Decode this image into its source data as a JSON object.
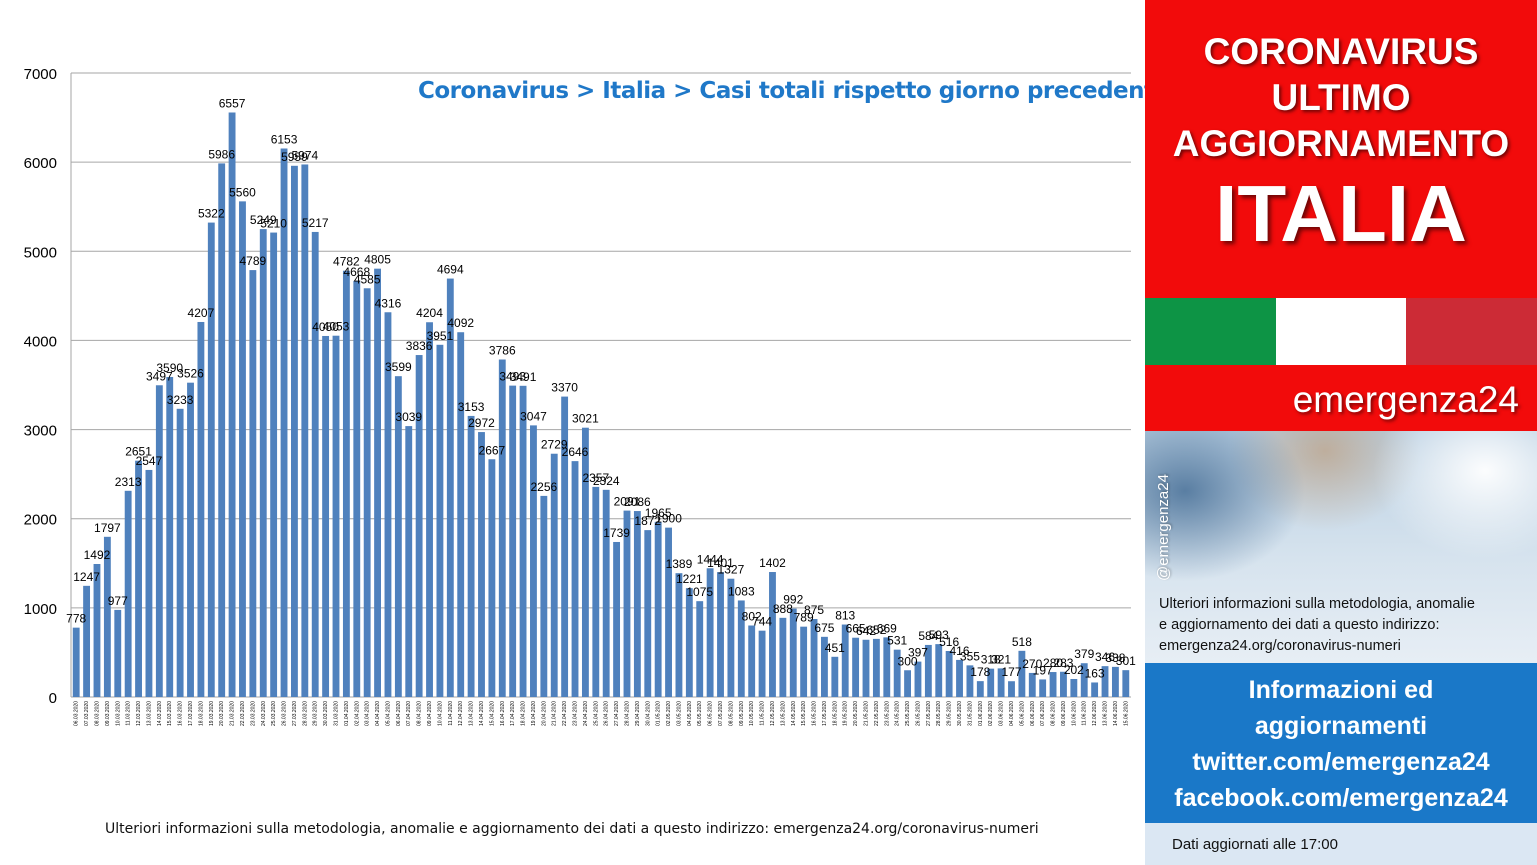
{
  "chart_title": "Coronavirus > Italia > Casi totali rispetto giorno precedente",
  "footer_note": "Ulteriori informazioni sulla metodologia, anomalie e aggiornamento dei dati a questo indirizzo: emergenza24.org/coronavirus-numeri",
  "colors": {
    "bar": "#4f81bd",
    "title": "#1f78c8",
    "red": "#f20b0b",
    "blue": "#1a78c8",
    "flag_green": "#0d9445",
    "flag_white": "#ffffff",
    "flag_red": "#cc2b36"
  },
  "side": {
    "headline_1": "CORONAVIRUS",
    "headline_2": "ULTIMO",
    "headline_3": "AGGIORNAMENTO",
    "country": "ITALIA",
    "brand": "emergenza24",
    "handle": "@emergenza24",
    "info_line_1": "Ulteriori informazioni sulla metodologia, anomalie",
    "info_line_2": "e aggiornamento dei dati a questo indirizzo:",
    "info_line_3": "emergenza24.org/coronavirus-numeri",
    "links_line_1": "Informazioni ed",
    "links_line_2": "aggiornamenti",
    "links_line_3": "twitter.com/emergenza24",
    "links_line_4": "facebook.com/emergenza24",
    "updated": "Dati aggiornati alle 17:00"
  },
  "chart_data": {
    "type": "bar",
    "title": "Coronavirus > Italia > Casi totali rispetto giorno precedente",
    "ylim": [
      0,
      7000
    ],
    "yticks": [
      0,
      1000,
      2000,
      3000,
      4000,
      5000,
      6000,
      7000
    ],
    "grid": true,
    "legend": "none",
    "categories": [
      "06.03.2020",
      "07.03.2020",
      "08.03.2020",
      "09.03.2020",
      "10.03.2020",
      "11.03.2020",
      "12.03.2020",
      "13.03.2020",
      "14.03.2020",
      "15.03.2020",
      "16.03.2020",
      "17.03.2020",
      "18.03.2020",
      "19.03.2020",
      "20.03.2020",
      "21.03.2020",
      "22.03.2020",
      "23.03.2020",
      "24.03.2020",
      "25.03.2020",
      "26.03.2020",
      "27.03.2020",
      "28.03.2020",
      "29.03.2020",
      "30.03.2020",
      "31.03.2020",
      "01.04.2020",
      "02.04.2020",
      "03.04.2020",
      "04.04.2020",
      "05.04.2020",
      "06.04.2020",
      "07.04.2020",
      "08.04.2020",
      "09.04.2020",
      "10.04.2020",
      "11.04.2020",
      "12.04.2020",
      "13.04.2020",
      "14.04.2020",
      "15.04.2020",
      "16.04.2020",
      "17.04.2020",
      "18.04.2020",
      "19.04.2020",
      "20.04.2020",
      "21.04.2020",
      "22.04.2020",
      "23.04.2020",
      "24.04.2020",
      "25.04.2020",
      "26.04.2020",
      "27.04.2020",
      "28.04.2020",
      "29.04.2020",
      "30.04.2020",
      "01.05.2020",
      "02.05.2020",
      "03.05.2020",
      "04.05.2020",
      "05.05.2020",
      "06.05.2020",
      "07.05.2020",
      "08.05.2020",
      "09.05.2020",
      "10.05.2020",
      "11.05.2020",
      "12.05.2020",
      "13.05.2020",
      "14.05.2020",
      "15.05.2020",
      "16.05.2020",
      "17.05.2020",
      "18.05.2020",
      "19.05.2020",
      "20.05.2020",
      "21.05.2020",
      "22.05.2020",
      "23.05.2020",
      "24.05.2020",
      "25.05.2020",
      "26.05.2020",
      "27.05.2020",
      "28.05.2020",
      "29.05.2020",
      "30.05.2020",
      "31.05.2020",
      "01.06.2020",
      "02.06.2020",
      "03.06.2020",
      "04.06.2020",
      "05.06.2020",
      "06.06.2020",
      "07.06.2020",
      "08.06.2020",
      "09.06.2020",
      "10.06.2020",
      "11.06.2020",
      "12.06.2020",
      "13.06.2020",
      "14.06.2020",
      "15.06.2020"
    ],
    "values": [
      778,
      1247,
      1492,
      1797,
      977,
      2313,
      2651,
      2547,
      3497,
      3590,
      3233,
      3526,
      4207,
      5322,
      5986,
      6557,
      5560,
      4789,
      5249,
      5210,
      6153,
      5959,
      5974,
      5217,
      4050,
      4053,
      4782,
      4668,
      4585,
      4805,
      4316,
      3599,
      3039,
      3836,
      4204,
      3951,
      4694,
      4092,
      3153,
      2972,
      2667,
      3786,
      3493,
      3491,
      3047,
      2256,
      2729,
      3370,
      2646,
      3021,
      2357,
      2324,
      1739,
      2091,
      2086,
      1872,
      1965,
      1900,
      1389,
      1221,
      1075,
      1444,
      1401,
      1327,
      1083,
      802,
      744,
      1402,
      888,
      992,
      789,
      875,
      675,
      451,
      813,
      665,
      642,
      652,
      669,
      531,
      300,
      397,
      584,
      593,
      516,
      416,
      355,
      178,
      318,
      321,
      177,
      518,
      270,
      197,
      280,
      283,
      202,
      379,
      163,
      346,
      338,
      301
    ]
  }
}
